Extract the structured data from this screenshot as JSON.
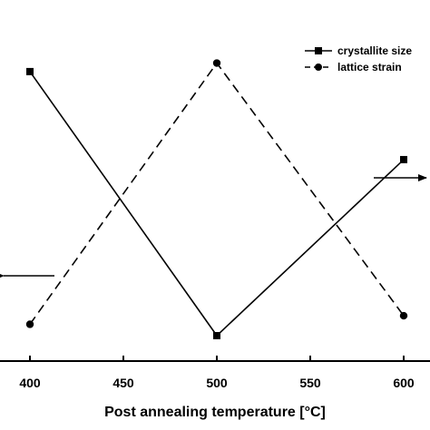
{
  "chart_data": {
    "type": "line",
    "x": [
      400,
      500,
      600
    ],
    "xlabel": "Post annealing temperature [°C]",
    "xlim": [
      380,
      612
    ],
    "x_ticks": [
      400,
      450,
      500,
      550,
      600
    ],
    "y_left_visible_ticks": false,
    "y_right_visible_ticks": false,
    "series": [
      {
        "name": "crystallite size",
        "axis": "right",
        "marker": "square",
        "line_style": "solid",
        "color": "#000000",
        "values": [
          0.93,
          0.0,
          0.62
        ]
      },
      {
        "name": "lattice strain",
        "axis": "left",
        "marker": "circle",
        "line_style": "dashed",
        "color": "#000000",
        "values": [
          0.04,
          0.96,
          0.07
        ]
      }
    ],
    "legend_labels": [
      "crystallite size",
      "lattice strain"
    ],
    "legend": "top-right",
    "annotations": [
      {
        "type": "arrow",
        "points_to": "left axis",
        "series": "lattice strain"
      },
      {
        "type": "arrow",
        "points_to": "right axis",
        "series": "crystallite size"
      }
    ],
    "grid": false
  }
}
